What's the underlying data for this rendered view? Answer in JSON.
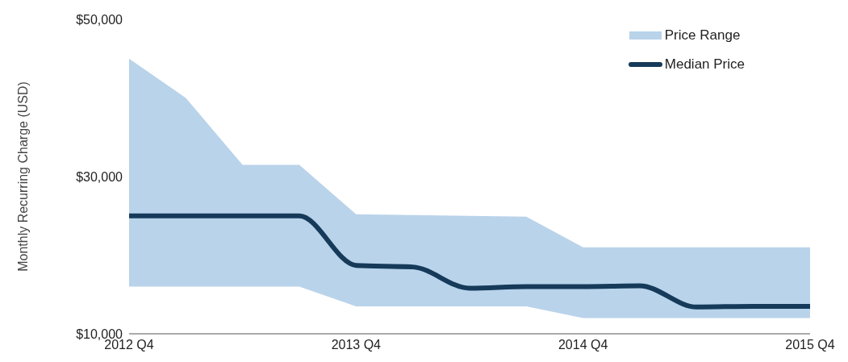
{
  "chart_data": {
    "type": "line",
    "ylabel": "Monthly Recurring Charge (USD)",
    "categories": [
      "2012 Q4",
      null,
      null,
      null,
      "2013 Q4",
      null,
      null,
      null,
      "2014 Q4",
      null,
      null,
      null,
      "2015 Q4"
    ],
    "series": [
      {
        "name": "Median Price",
        "color": "#163a5a",
        "values": [
          25000,
          25000,
          25000,
          25000,
          18700,
          18500,
          15800,
          16000,
          16000,
          16100,
          13400,
          13500,
          13500
        ],
        "lower": [
          16000,
          16000,
          16000,
          16000,
          13500,
          13500,
          13500,
          13500,
          12000,
          12000,
          12000,
          12000,
          12000
        ],
        "upper": [
          45000,
          40000,
          31500,
          31500,
          25200,
          25100,
          25000,
          24900,
          21000,
          21000,
          21000,
          21000,
          21000
        ]
      }
    ],
    "annotations": [
      "Price Range"
    ],
    "ylim": [
      10000,
      50000
    ],
    "yticks": [
      {
        "value": 10000,
        "label": "$10,000"
      },
      {
        "value": 30000,
        "label": "$30,000"
      },
      {
        "value": 50000,
        "label": "$50,000"
      }
    ],
    "legend": "top right",
    "grid": false,
    "marker": "none",
    "line_style": "solid"
  }
}
